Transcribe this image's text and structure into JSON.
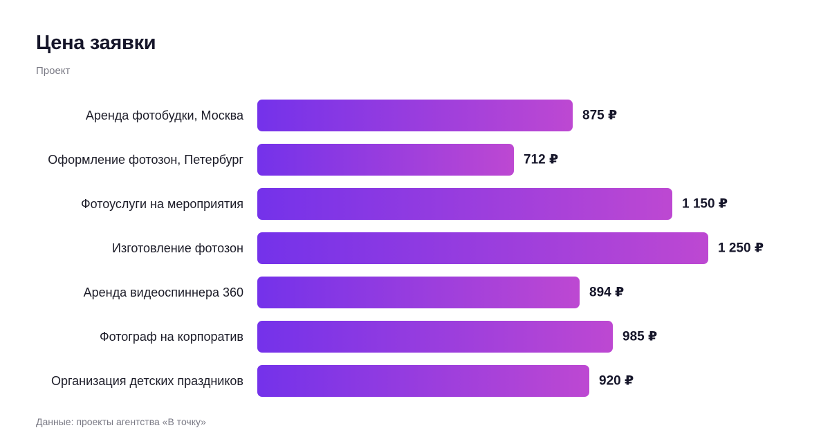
{
  "title": "Цена заявки",
  "subtitle": "Проект",
  "footer": "Данные: проекты агентства «В точку»",
  "colors": {
    "bar_start": "#7432ea",
    "bar_end": "#bd48d2"
  },
  "chart_data": {
    "type": "bar",
    "orientation": "horizontal",
    "title": "Цена заявки",
    "subtitle": "Проект",
    "categories": [
      "Аренда фотобудки, Москва",
      "Оформление фотозон, Петербург",
      "Фотоуслуги на мероприятия",
      "Изготовление фотозон",
      "Аренда видеоспиннера 360",
      "Фотограф на корпоратив",
      "Организация детских праздников"
    ],
    "values": [
      875,
      712,
      1150,
      1250,
      894,
      985,
      920
    ],
    "value_labels": [
      "875 ₽",
      "712 ₽",
      "1 150 ₽",
      "1 250 ₽",
      "894 ₽",
      "985 ₽",
      "920 ₽"
    ],
    "unit": "₽",
    "xlim": [
      0,
      1250
    ],
    "grid": false,
    "legend": "none"
  }
}
